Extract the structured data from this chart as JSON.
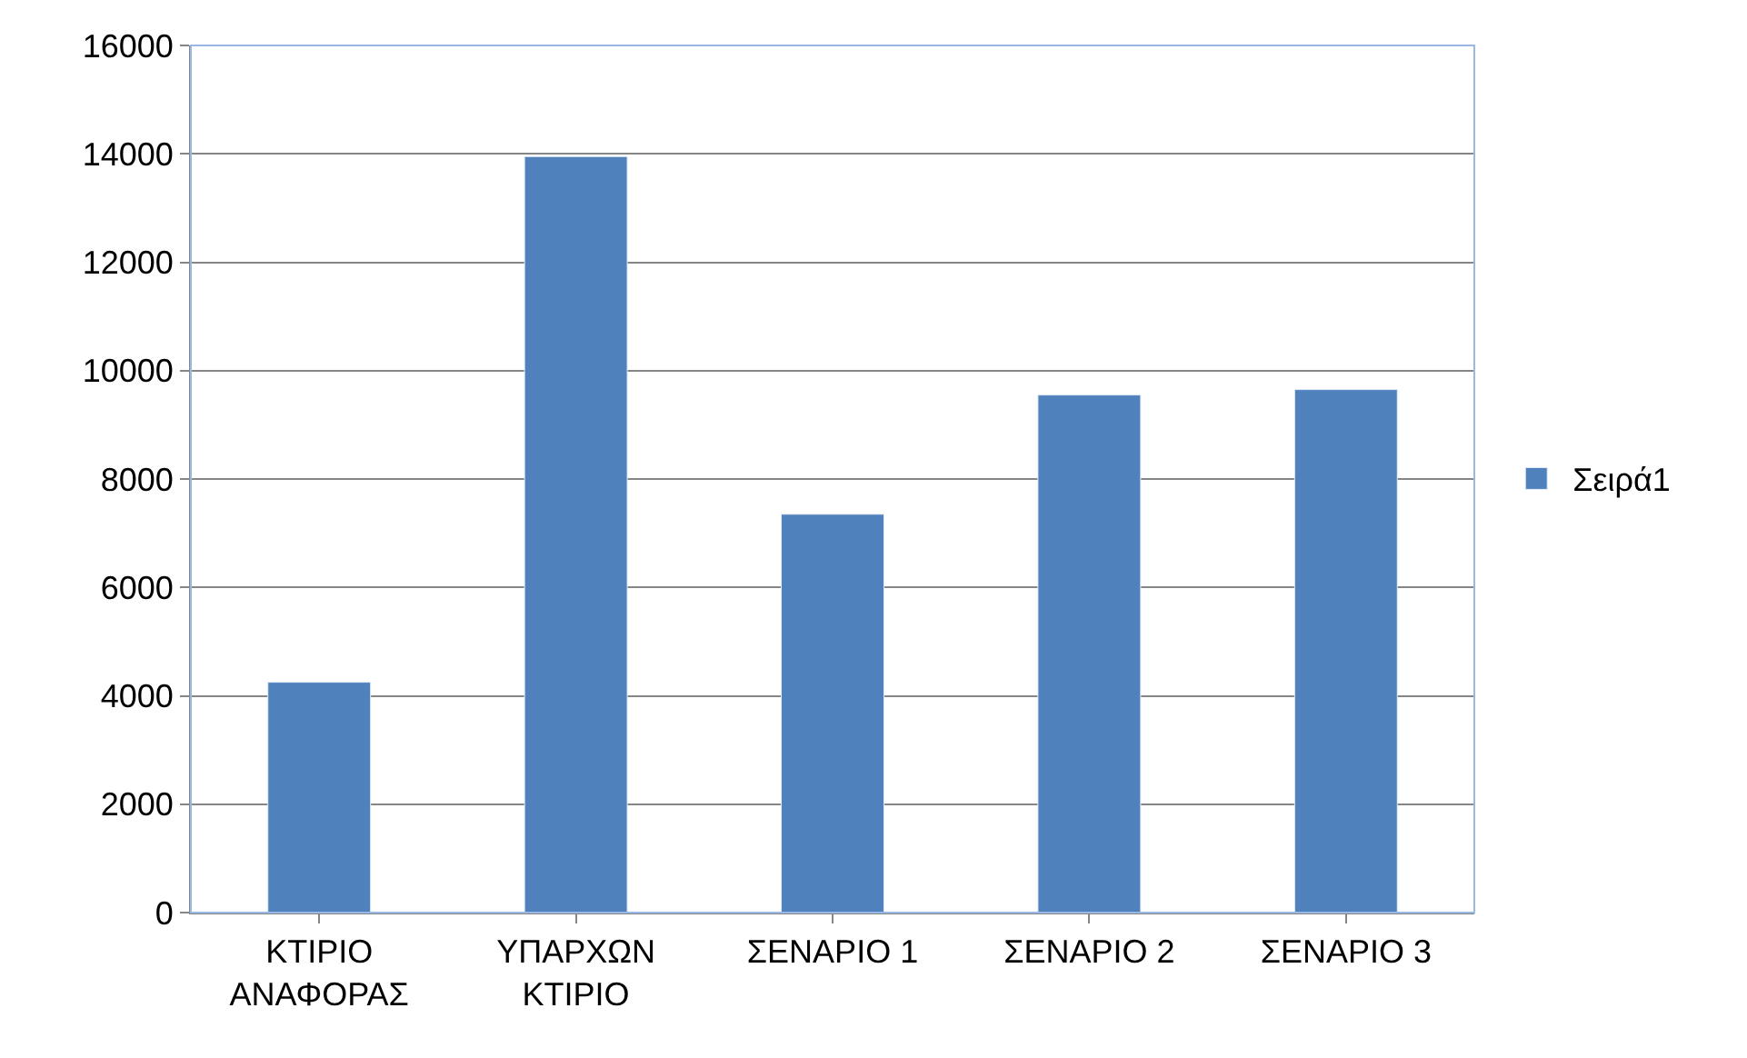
{
  "chart_data": {
    "type": "bar",
    "categories": [
      "ΚΤΙΡΙΟ ΑΝΑΦΟΡΑΣ",
      "ΥΠΑΡΧΩΝ ΚΤΙΡΙΟ",
      "ΣΕΝΑΡΙΟ 1",
      "ΣΕΝΑΡΙΟ 2",
      "ΣΕΝΑΡΙΟ 3"
    ],
    "series": [
      {
        "name": "Σειρά1",
        "color": "#4f81bd",
        "values": [
          4250,
          13950,
          7350,
          9550,
          9650
        ]
      }
    ],
    "ylim": [
      0,
      16000
    ],
    "yticks": [
      0,
      2000,
      4000,
      6000,
      8000,
      10000,
      12000,
      14000,
      16000
    ],
    "grid": "y",
    "legend": "right"
  }
}
